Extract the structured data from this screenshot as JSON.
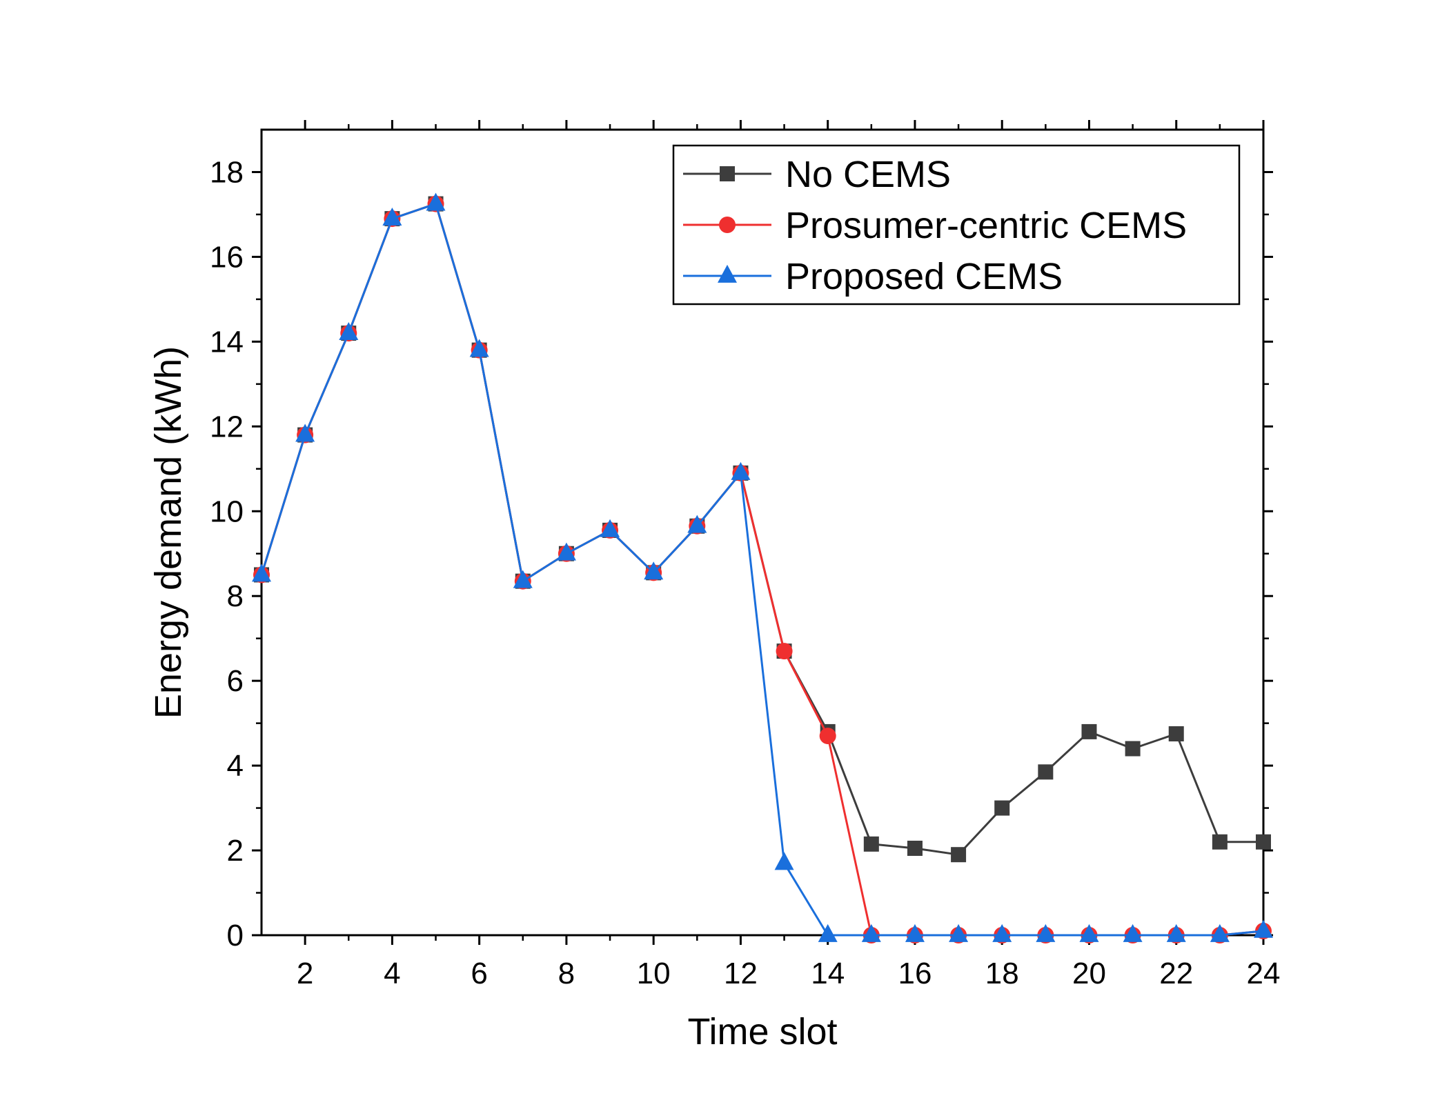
{
  "chart_data": {
    "type": "line",
    "title": "",
    "xlabel": "Time slot",
    "ylabel": "Energy demand (kWh)",
    "xlim": [
      1,
      24
    ],
    "ylim": [
      0,
      19
    ],
    "xticks": [
      2,
      4,
      6,
      8,
      10,
      12,
      14,
      16,
      18,
      20,
      22,
      24
    ],
    "yticks": [
      0,
      2,
      4,
      6,
      8,
      10,
      12,
      14,
      16,
      18
    ],
    "grid": false,
    "legend_position": "top-right",
    "x": [
      1,
      2,
      3,
      4,
      5,
      6,
      7,
      8,
      9,
      10,
      11,
      12,
      13,
      14,
      15,
      16,
      17,
      18,
      19,
      20,
      21,
      22,
      23,
      24
    ],
    "series": [
      {
        "name": "No CEMS",
        "color": "#3d3d3d",
        "marker": "square",
        "values": [
          8.5,
          11.8,
          14.2,
          16.9,
          17.25,
          13.8,
          8.35,
          9.0,
          9.55,
          8.55,
          9.65,
          10.9,
          6.7,
          4.8,
          2.15,
          2.05,
          1.9,
          3.0,
          3.85,
          4.8,
          4.4,
          4.75,
          2.2,
          2.2
        ]
      },
      {
        "name": "Prosumer-centric CEMS",
        "color": "#ef2f2f",
        "marker": "circle",
        "values": [
          8.5,
          11.8,
          14.2,
          16.9,
          17.25,
          13.8,
          8.35,
          9.0,
          9.55,
          8.55,
          9.65,
          10.9,
          6.7,
          4.7,
          0.0,
          0.0,
          0.0,
          0.0,
          0.0,
          0.0,
          0.0,
          0.0,
          0.0,
          0.1
        ]
      },
      {
        "name": "Proposed CEMS",
        "color": "#1a6fdc",
        "marker": "triangle",
        "values": [
          8.5,
          11.8,
          14.2,
          16.9,
          17.25,
          13.8,
          8.35,
          9.0,
          9.55,
          8.55,
          9.65,
          10.9,
          1.7,
          0.0,
          0.0,
          0.0,
          0.0,
          0.0,
          0.0,
          0.0,
          0.0,
          0.0,
          0.0,
          0.1
        ]
      }
    ]
  }
}
